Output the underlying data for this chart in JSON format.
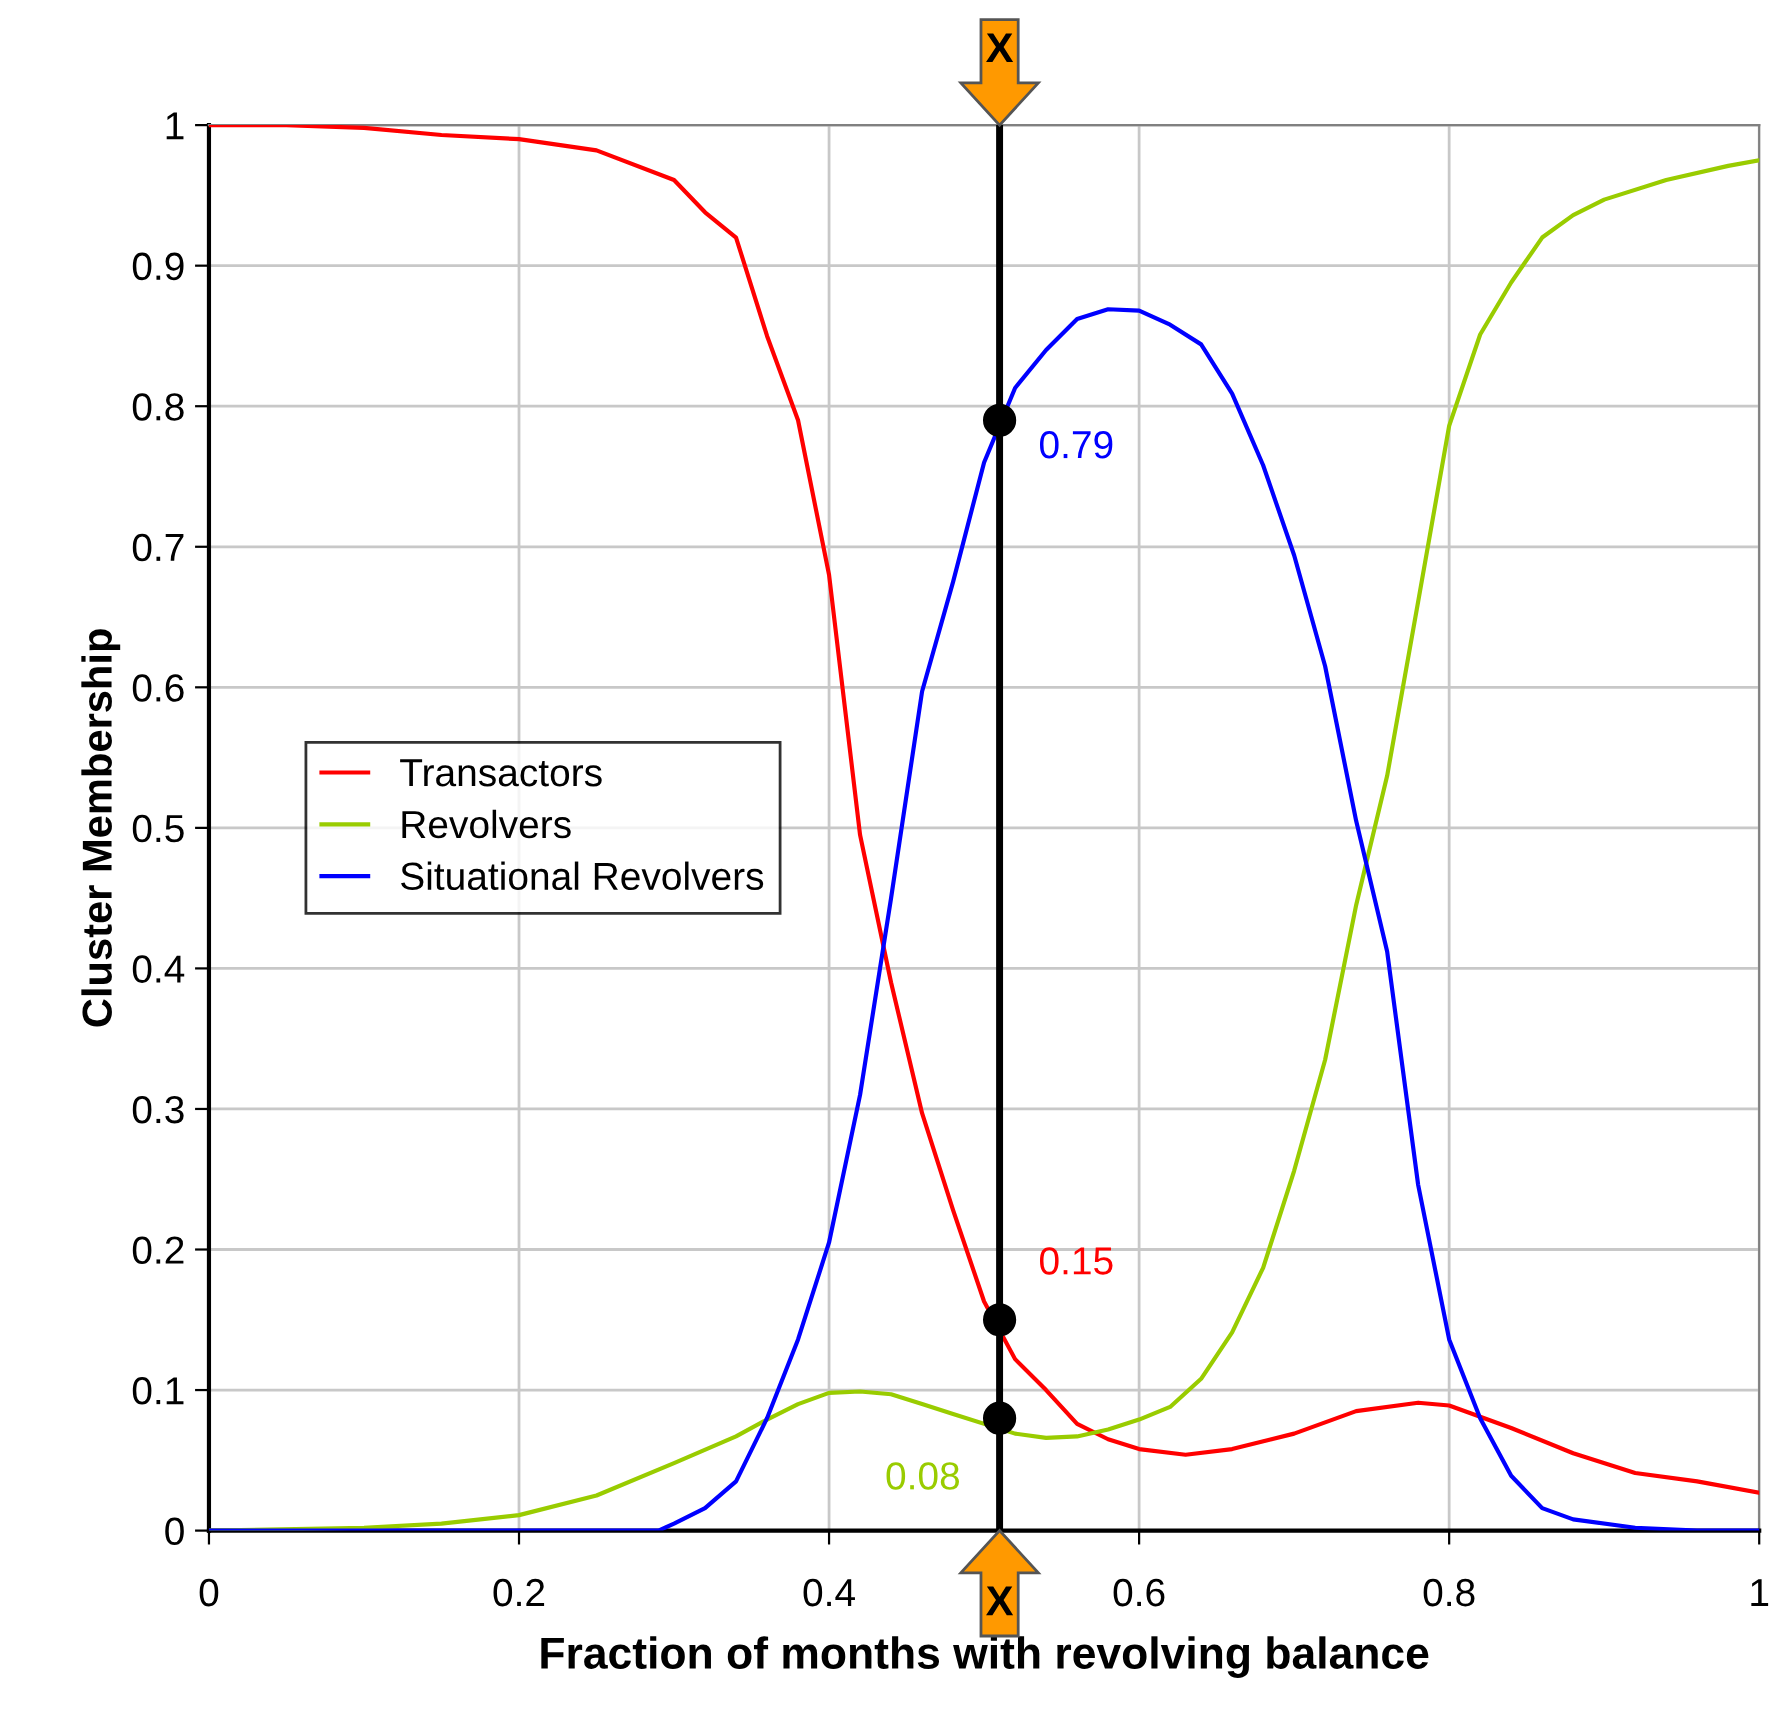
{
  "chart_data": {
    "type": "line",
    "xlabel": "Fraction of months with revolving balance",
    "ylabel": "Cluster Membership",
    "xlim": [
      0,
      1
    ],
    "ylim": [
      0,
      1
    ],
    "xticks": [
      0,
      0.2,
      0.4,
      0.6,
      0.8,
      1
    ],
    "yticks": [
      0,
      0.1,
      0.2,
      0.3,
      0.4,
      0.5,
      0.6,
      0.7,
      0.8,
      0.9,
      1
    ],
    "grid": true,
    "legend": "center left",
    "marker": "none",
    "line_style": "solid",
    "series": [
      {
        "name": "Transactors",
        "color": "#ff0000",
        "x": [
          0,
          0.05,
          0.1,
          0.15,
          0.2,
          0.25,
          0.3,
          0.32,
          0.34,
          0.36,
          0.38,
          0.4,
          0.42,
          0.44,
          0.46,
          0.48,
          0.5,
          0.52,
          0.54,
          0.56,
          0.58,
          0.6,
          0.63,
          0.66,
          0.7,
          0.74,
          0.78,
          0.8,
          0.84,
          0.88,
          0.92,
          0.96,
          1
        ],
        "values": [
          1.0,
          1.0,
          0.998,
          0.993,
          0.99,
          0.982,
          0.961,
          0.938,
          0.92,
          0.85,
          0.79,
          0.68,
          0.495,
          0.39,
          0.297,
          0.228,
          0.163,
          0.122,
          0.1,
          0.076,
          0.065,
          0.058,
          0.054,
          0.058,
          0.069,
          0.085,
          0.091,
          0.089,
          0.073,
          0.055,
          0.041,
          0.035,
          0.027
        ]
      },
      {
        "name": "Revolvers",
        "color": "#99cc00",
        "x": [
          0,
          0.1,
          0.15,
          0.2,
          0.25,
          0.3,
          0.34,
          0.36,
          0.38,
          0.4,
          0.42,
          0.44,
          0.46,
          0.48,
          0.52,
          0.54,
          0.56,
          0.58,
          0.6,
          0.62,
          0.64,
          0.66,
          0.68,
          0.7,
          0.72,
          0.74,
          0.76,
          0.78,
          0.8,
          0.82,
          0.84,
          0.86,
          0.88,
          0.9,
          0.94,
          0.98,
          1
        ],
        "values": [
          0,
          0.002,
          0.005,
          0.011,
          0.025,
          0.048,
          0.067,
          0.079,
          0.09,
          0.098,
          0.099,
          0.097,
          0.09,
          0.083,
          0.069,
          0.066,
          0.067,
          0.072,
          0.079,
          0.088,
          0.108,
          0.141,
          0.187,
          0.256,
          0.335,
          0.445,
          0.537,
          0.661,
          0.786,
          0.851,
          0.888,
          0.92,
          0.936,
          0.947,
          0.961,
          0.971,
          0.975
        ]
      },
      {
        "type": "scatter",
        "color": "#000000",
        "marker": "circle",
        "x": [
          0.51,
          0.51,
          0.51
        ],
        "values": [
          0.15,
          0.08,
          0.79
        ],
        "value_labels": [
          "0.15",
          "0.08",
          "0.79"
        ]
      },
      {
        "name": "Situational Revolvers",
        "color": "#0000ff",
        "x": [
          0,
          0.29,
          0.3,
          0.32,
          0.34,
          0.36,
          0.38,
          0.4,
          0.42,
          0.44,
          0.46,
          0.48,
          0.5,
          0.52,
          0.54,
          0.56,
          0.58,
          0.6,
          0.62,
          0.64,
          0.66,
          0.68,
          0.7,
          0.72,
          0.74,
          0.76,
          0.78,
          0.8,
          0.82,
          0.84,
          0.86,
          0.88,
          0.92,
          0.96,
          1
        ],
        "values": [
          0,
          0,
          0.005,
          0.016,
          0.035,
          0.08,
          0.136,
          0.205,
          0.31,
          0.45,
          0.597,
          0.675,
          0.76,
          0.813,
          0.84,
          0.862,
          0.869,
          0.868,
          0.858,
          0.844,
          0.809,
          0.758,
          0.694,
          0.615,
          0.505,
          0.412,
          0.246,
          0.136,
          0.08,
          0.039,
          0.016,
          0.008,
          0.002,
          0,
          0
        ]
      }
    ],
    "ref_lines": [
      {
        "axis": "x",
        "value": 0.51,
        "label": "X",
        "color": "#000000"
      }
    ]
  }
}
